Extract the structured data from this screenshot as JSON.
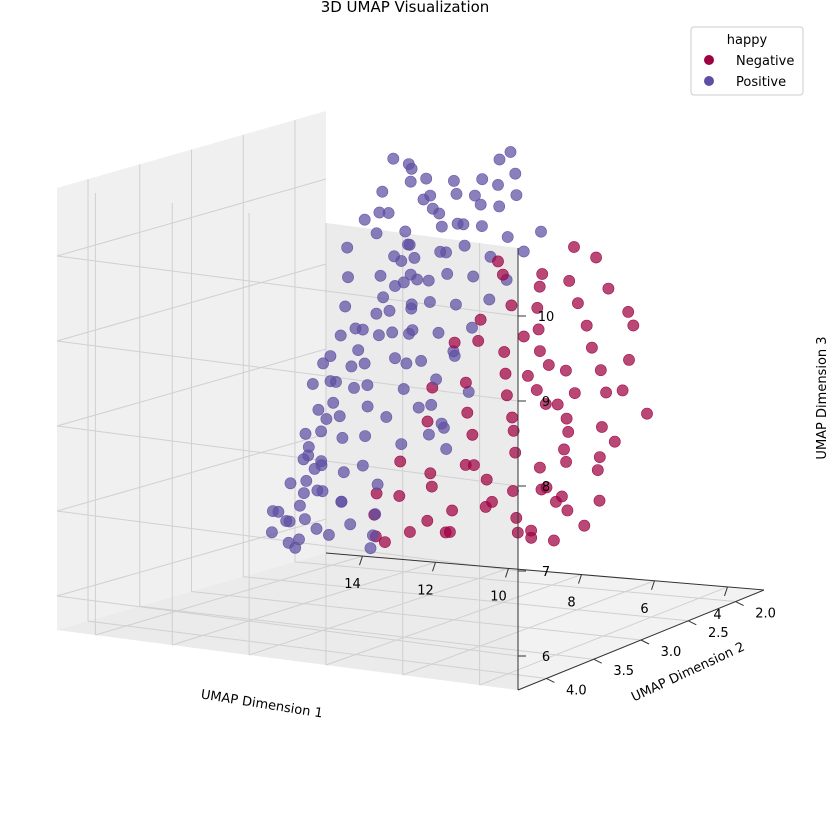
{
  "chart_data": {
    "type": "scatter",
    "projection": "3d",
    "title": "3D UMAP Visualization",
    "xlabel": "UMAP Dimension 1",
    "ylabel": "UMAP Dimension 2",
    "zlabel": "UMAP Dimension 3",
    "x_ticks": [
      "14",
      "12",
      "10",
      "8",
      "6",
      "4"
    ],
    "y_ticks": [
      "2.0",
      "2.5",
      "3.0",
      "3.5",
      "4.0"
    ],
    "z_ticks": [
      "6",
      "7",
      "8",
      "9",
      "10"
    ],
    "xlim": [
      3.0,
      15.0
    ],
    "ylim": [
      1.7,
      4.3
    ],
    "zlim": [
      5.6,
      10.8
    ],
    "grid": true,
    "legend": {
      "title": "happy",
      "position": "top-right",
      "entries": [
        "Negative",
        "Positive"
      ]
    },
    "series": [
      {
        "name": "Negative",
        "color": "#9e0142",
        "points": [
          [
            3.5,
            3.4,
            7.1
          ],
          [
            3.8,
            3.6,
            7.0
          ],
          [
            4.0,
            3.5,
            7.4
          ],
          [
            3.6,
            3.2,
            7.3
          ],
          [
            4.2,
            3.3,
            7.2
          ],
          [
            4.5,
            3.4,
            7.5
          ],
          [
            3.9,
            3.1,
            7.6
          ],
          [
            4.6,
            3.2,
            7.3
          ],
          [
            4.8,
            3.1,
            7.8
          ],
          [
            5.0,
            3.0,
            7.6
          ],
          [
            5.2,
            2.9,
            7.9
          ],
          [
            5.5,
            2.8,
            8.0
          ],
          [
            5.8,
            2.9,
            8.2
          ],
          [
            6.0,
            2.7,
            8.1
          ],
          [
            6.3,
            2.8,
            8.3
          ],
          [
            6.5,
            2.6,
            8.5
          ],
          [
            6.8,
            2.7,
            8.4
          ],
          [
            7.0,
            2.5,
            8.6
          ],
          [
            7.3,
            2.4,
            8.8
          ],
          [
            7.6,
            2.3,
            9.0
          ],
          [
            7.8,
            2.2,
            9.2
          ],
          [
            8.0,
            2.1,
            9.3
          ],
          [
            5.4,
            3.1,
            7.3
          ],
          [
            5.7,
            3.0,
            7.5
          ],
          [
            6.1,
            3.1,
            7.7
          ],
          [
            6.4,
            3.0,
            7.9
          ],
          [
            6.7,
            2.9,
            8.0
          ],
          [
            7.1,
            2.8,
            8.2
          ],
          [
            7.4,
            2.7,
            8.4
          ],
          [
            7.7,
            2.6,
            8.6
          ],
          [
            6.2,
            3.3,
            7.2
          ],
          [
            6.6,
            3.2,
            7.4
          ],
          [
            6.9,
            3.3,
            7.6
          ],
          [
            7.2,
            3.1,
            7.5
          ],
          [
            7.5,
            3.0,
            7.8
          ],
          [
            7.9,
            2.9,
            8.0
          ],
          [
            8.2,
            2.8,
            8.3
          ],
          [
            8.4,
            2.6,
            8.7
          ],
          [
            8.6,
            2.5,
            8.9
          ],
          [
            7.0,
            3.4,
            7.1
          ],
          [
            7.4,
            3.5,
            7.0
          ],
          [
            7.8,
            3.3,
            7.3
          ],
          [
            8.1,
            3.2,
            7.4
          ],
          [
            8.4,
            3.4,
            7.2
          ],
          [
            4.3,
            2.9,
            8.0
          ],
          [
            4.7,
            2.7,
            8.3
          ],
          [
            5.1,
            2.6,
            8.5
          ],
          [
            5.6,
            2.5,
            8.7
          ],
          [
            6.0,
            2.4,
            8.9
          ],
          [
            6.5,
            2.3,
            9.1
          ],
          [
            7.0,
            2.2,
            9.3
          ],
          [
            3.7,
            3.0,
            7.9
          ],
          [
            4.1,
            3.0,
            7.7
          ],
          [
            4.4,
            3.6,
            7.0
          ],
          [
            5.3,
            3.4,
            7.1
          ],
          [
            5.9,
            3.2,
            7.3
          ],
          [
            6.8,
            3.5,
            6.9
          ],
          [
            7.6,
            3.6,
            6.9
          ],
          [
            8.0,
            3.7,
            6.8
          ],
          [
            8.5,
            3.6,
            6.8
          ],
          [
            8.8,
            3.5,
            7.0
          ],
          [
            9.0,
            3.4,
            7.2
          ],
          [
            8.9,
            3.2,
            7.5
          ],
          [
            8.7,
            3.0,
            7.9
          ],
          [
            9.1,
            2.8,
            8.2
          ],
          [
            9.3,
            2.5,
            8.6
          ],
          [
            5.0,
            2.3,
            8.9
          ],
          [
            5.4,
            2.2,
            9.0
          ],
          [
            6.2,
            2.1,
            9.2
          ],
          [
            6.8,
            2.0,
            9.5
          ],
          [
            7.4,
            2.0,
            9.6
          ],
          [
            4.0,
            2.8,
            8.4
          ],
          [
            4.6,
            2.5,
            8.6
          ],
          [
            3.6,
            2.7,
            8.1
          ],
          [
            5.8,
            2.6,
            8.2
          ],
          [
            6.3,
            2.5,
            8.4
          ],
          [
            7.7,
            2.4,
            8.7
          ],
          [
            8.3,
            2.3,
            9.0
          ],
          [
            8.8,
            2.2,
            9.3
          ],
          [
            9.2,
            2.1,
            9.4
          ],
          [
            3.9,
            3.8,
            7.2
          ],
          [
            4.5,
            3.7,
            7.1
          ],
          [
            5.6,
            3.6,
            7.3
          ],
          [
            6.4,
            3.7,
            7.0
          ]
        ]
      },
      {
        "name": "Positive",
        "color": "#5e4fa2",
        "points": [
          [
            13.5,
            2.6,
            6.1
          ],
          [
            13.2,
            2.7,
            6.4
          ],
          [
            13.0,
            2.5,
            6.7
          ],
          [
            12.8,
            2.6,
            7.0
          ],
          [
            12.6,
            2.4,
            7.3
          ],
          [
            12.4,
            2.5,
            7.6
          ],
          [
            12.2,
            2.3,
            7.9
          ],
          [
            12.0,
            2.4,
            8.2
          ],
          [
            11.8,
            2.2,
            8.5
          ],
          [
            11.6,
            2.3,
            8.8
          ],
          [
            11.4,
            2.1,
            9.1
          ],
          [
            11.2,
            2.2,
            9.4
          ],
          [
            11.0,
            2.0,
            9.7
          ],
          [
            10.8,
            2.1,
            9.9
          ],
          [
            10.6,
            2.0,
            10.1
          ],
          [
            10.4,
            2.1,
            10.3
          ],
          [
            13.4,
            2.8,
            6.3
          ],
          [
            13.1,
            2.9,
            6.6
          ],
          [
            12.9,
            2.8,
            6.9
          ],
          [
            12.7,
            2.7,
            7.2
          ],
          [
            12.5,
            2.8,
            7.5
          ],
          [
            12.3,
            2.6,
            7.8
          ],
          [
            12.1,
            2.7,
            8.1
          ],
          [
            11.9,
            2.5,
            8.4
          ],
          [
            11.7,
            2.6,
            8.7
          ],
          [
            11.5,
            2.4,
            9.0
          ],
          [
            11.3,
            2.5,
            9.3
          ],
          [
            11.1,
            2.3,
            9.6
          ],
          [
            10.9,
            2.4,
            9.8
          ],
          [
            10.7,
            2.2,
            10.0
          ],
          [
            10.5,
            2.3,
            10.2
          ],
          [
            13.3,
            2.4,
            6.2
          ],
          [
            13.6,
            2.5,
            6.0
          ],
          [
            12.9,
            2.3,
            6.5
          ],
          [
            12.6,
            2.2,
            6.9
          ],
          [
            10.2,
            2.6,
            9.0
          ],
          [
            10.0,
            2.5,
            9.3
          ],
          [
            9.8,
            2.4,
            9.6
          ],
          [
            9.6,
            2.3,
            9.9
          ],
          [
            9.4,
            2.2,
            10.1
          ],
          [
            9.2,
            2.1,
            10.3
          ],
          [
            9.0,
            2.0,
            10.4
          ],
          [
            10.1,
            2.8,
            8.5
          ],
          [
            9.9,
            2.7,
            8.8
          ],
          [
            9.7,
            2.6,
            9.1
          ],
          [
            9.5,
            2.5,
            9.4
          ],
          [
            9.3,
            2.4,
            9.7
          ],
          [
            9.1,
            2.3,
            9.9
          ],
          [
            8.9,
            2.2,
            10.1
          ],
          [
            8.7,
            2.1,
            10.2
          ],
          [
            10.3,
            3.0,
            8.0
          ],
          [
            10.1,
            3.1,
            7.7
          ],
          [
            9.8,
            3.0,
            7.9
          ],
          [
            9.6,
            2.9,
            8.2
          ],
          [
            9.4,
            2.8,
            8.5
          ],
          [
            9.2,
            2.7,
            8.8
          ],
          [
            9.0,
            2.6,
            9.1
          ],
          [
            8.8,
            2.5,
            9.4
          ],
          [
            8.6,
            2.4,
            9.6
          ],
          [
            8.4,
            2.3,
            9.8
          ],
          [
            11.2,
            2.8,
            8.1
          ],
          [
            11.0,
            2.9,
            8.4
          ],
          [
            10.8,
            2.7,
            8.7
          ],
          [
            10.6,
            2.8,
            9.0
          ],
          [
            10.4,
            2.6,
            9.3
          ],
          [
            10.2,
            2.7,
            9.6
          ],
          [
            11.4,
            3.0,
            7.8
          ],
          [
            11.6,
            3.1,
            7.5
          ],
          [
            11.8,
            2.9,
            7.2
          ],
          [
            12.0,
            3.0,
            6.9
          ],
          [
            12.2,
            3.1,
            6.6
          ],
          [
            12.4,
            2.9,
            6.3
          ],
          [
            9.5,
            3.2,
            7.2
          ],
          [
            9.3,
            3.3,
            6.9
          ],
          [
            9.1,
            3.4,
            6.7
          ],
          [
            8.9,
            3.5,
            6.6
          ],
          [
            9.7,
            3.4,
            6.8
          ],
          [
            10.0,
            3.5,
            6.7
          ],
          [
            10.5,
            2.2,
            9.5
          ],
          [
            10.3,
            2.1,
            9.8
          ],
          [
            10.1,
            2.0,
            10.1
          ],
          [
            9.9,
            2.0,
            10.3
          ],
          [
            9.7,
            1.9,
            10.5
          ],
          [
            9.4,
            1.9,
            10.6
          ],
          [
            12.0,
            2.1,
            9.0
          ],
          [
            12.3,
            2.0,
            9.3
          ],
          [
            12.5,
            2.1,
            9.6
          ],
          [
            12.7,
            2.0,
            9.8
          ],
          [
            12.9,
            1.9,
            10.0
          ],
          [
            13.1,
            2.0,
            9.7
          ],
          [
            13.3,
            2.1,
            9.4
          ],
          [
            13.0,
            2.2,
            9.1
          ],
          [
            12.8,
            2.3,
            8.8
          ],
          [
            12.6,
            2.2,
            8.5
          ],
          [
            13.2,
            2.3,
            8.2
          ],
          [
            13.4,
            2.4,
            7.9
          ],
          [
            11.5,
            2.0,
            10.0
          ],
          [
            11.7,
            1.9,
            10.2
          ],
          [
            11.9,
            2.0,
            10.4
          ],
          [
            12.1,
            1.9,
            10.3
          ],
          [
            12.4,
            1.8,
            10.1
          ],
          [
            12.6,
            1.9,
            10.4
          ],
          [
            8.5,
            2.8,
            8.6
          ],
          [
            8.3,
            2.7,
            8.9
          ],
          [
            8.1,
            2.6,
            9.2
          ],
          [
            7.9,
            2.5,
            9.4
          ],
          [
            7.7,
            2.4,
            9.7
          ],
          [
            7.5,
            2.3,
            9.9
          ],
          [
            8.6,
            3.0,
            8.1
          ],
          [
            8.4,
            3.1,
            7.8
          ],
          [
            8.2,
            3.0,
            7.6
          ],
          [
            8.0,
            3.1,
            7.9
          ],
          [
            7.8,
            3.2,
            8.0
          ],
          [
            7.6,
            3.0,
            8.3
          ],
          [
            11.0,
            3.2,
            7.4
          ],
          [
            10.7,
            3.3,
            7.1
          ],
          [
            10.4,
            3.2,
            7.3
          ],
          [
            10.2,
            3.3,
            7.0
          ],
          [
            10.9,
            3.4,
            6.8
          ],
          [
            11.3,
            3.3,
            6.9
          ],
          [
            11.9,
            2.2,
            9.9
          ],
          [
            11.6,
            2.1,
            9.5
          ],
          [
            11.3,
            2.2,
            9.2
          ],
          [
            11.0,
            2.3,
            8.9
          ],
          [
            10.8,
            2.4,
            8.6
          ],
          [
            10.6,
            2.5,
            8.3
          ],
          [
            12.1,
            2.6,
            8.6
          ],
          [
            12.3,
            2.7,
            8.3
          ],
          [
            12.5,
            2.5,
            8.0
          ],
          [
            12.7,
            2.6,
            7.7
          ],
          [
            12.9,
            2.5,
            7.4
          ],
          [
            13.1,
            2.6,
            7.1
          ],
          [
            13.3,
            2.5,
            6.8
          ],
          [
            13.5,
            2.7,
            6.5
          ],
          [
            9.2,
            2.9,
            8.0
          ],
          [
            9.0,
            2.8,
            8.3
          ],
          [
            8.8,
            2.7,
            8.6
          ],
          [
            9.4,
            3.0,
            7.6
          ]
        ]
      }
    ]
  }
}
